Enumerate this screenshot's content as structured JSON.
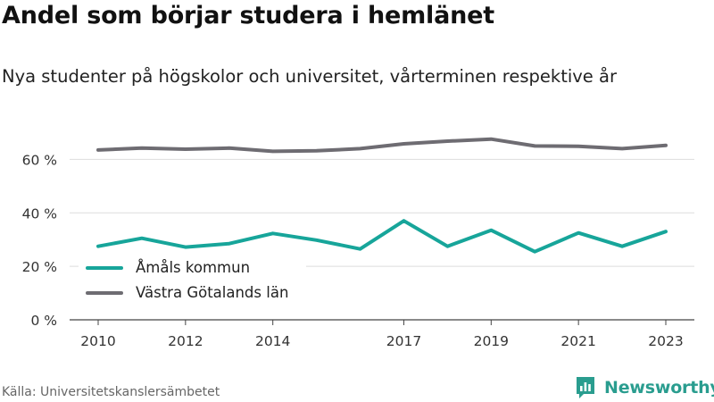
{
  "title": "Andel som börjar studera i hemlänet",
  "subtitle": "Nya studenter på högskolor och universitet, vårterminen respektive år",
  "source": "Källa: Universitetskanslersämbetet",
  "brand": {
    "name": "Newsworthy",
    "icon": "newsworthy-chart-logo-icon",
    "color": "#2a9d8f"
  },
  "chart_data": {
    "type": "line",
    "title": "Andel som börjar studera i hemlänet",
    "subtitle": "Nya studenter på högskolor och universitet, vårterminen respektive år",
    "x": [
      2010,
      2011,
      2012,
      2013,
      2014,
      2015,
      2016,
      2017,
      2018,
      2019,
      2020,
      2021,
      2022,
      2023
    ],
    "x_tick_labels": [
      "2010",
      "2012",
      "2014",
      "2017",
      "2019",
      "2021",
      "2023"
    ],
    "y_tick_labels": [
      "0 %",
      "20 %",
      "40 %",
      "60 %"
    ],
    "ylim": [
      0,
      70
    ],
    "grid": true,
    "legend_position": "bottom-left",
    "series": [
      {
        "name": "Åmåls kommun",
        "color": "#17a59a",
        "values": [
          27.5,
          30.5,
          27.2,
          28.5,
          32.3,
          29.8,
          26.5,
          37.0,
          27.5,
          33.5,
          25.5,
          32.5,
          27.5,
          33.0
        ]
      },
      {
        "name": "Västra Götalands län",
        "color": "#6e6c72",
        "values": [
          63.5,
          64.2,
          63.8,
          64.2,
          63.0,
          63.2,
          64.0,
          65.8,
          66.8,
          67.6,
          65.0,
          64.9,
          64.0,
          65.2
        ]
      }
    ]
  }
}
